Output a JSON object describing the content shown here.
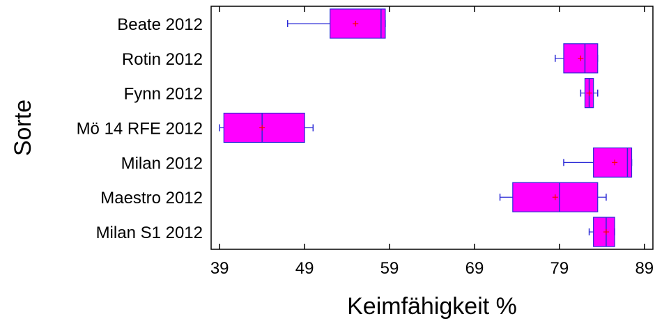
{
  "chart_data": {
    "type": "boxplot",
    "xlabel": "Keimfähigkeit %",
    "ylabel": "Sorte",
    "xlim": [
      38,
      90
    ],
    "xticks": [
      39,
      49,
      59,
      69,
      79,
      89
    ],
    "categories": [
      "Beate 2012",
      "Rotin 2012",
      "Fynn 2012",
      "Mö 14 RFE 2012",
      "Milan 2012",
      "Maestro 2012",
      "Milan S1 2012"
    ],
    "boxes": [
      {
        "category": "Beate 2012",
        "min": 47,
        "q1": 52,
        "median": 58,
        "q3": 58.5,
        "max": 58.5,
        "mean": 55
      },
      {
        "category": "Rotin 2012",
        "min": 78.5,
        "q1": 79.5,
        "median": 82,
        "q3": 83.5,
        "max": 83.5,
        "mean": 81.5
      },
      {
        "category": "Fynn 2012",
        "min": 81.5,
        "q1": 82,
        "median": 82.5,
        "q3": 83,
        "max": 83.5,
        "mean": 82.5
      },
      {
        "category": "Mö 14 RFE 2012",
        "min": 39,
        "q1": 39.5,
        "median": 44,
        "q3": 49,
        "max": 50,
        "mean": 44
      },
      {
        "category": "Milan 2012",
        "min": 79.5,
        "q1": 83,
        "median": 87,
        "q3": 87.5,
        "max": 87.5,
        "mean": 85.5
      },
      {
        "category": "Maestro 2012",
        "min": 72,
        "q1": 73.5,
        "median": 79,
        "q3": 83.5,
        "max": 84.5,
        "mean": 78.5
      },
      {
        "category": "Milan S1 2012",
        "min": 82.5,
        "q1": 83,
        "median": 84.5,
        "q3": 85.5,
        "max": 85.5,
        "mean": 84.5
      }
    ],
    "grid": false,
    "legend": "none"
  },
  "colors": {
    "box_fill": "#ff00ff",
    "box_stroke": "#2b2bd6",
    "mean_marker": "#ff0000"
  }
}
